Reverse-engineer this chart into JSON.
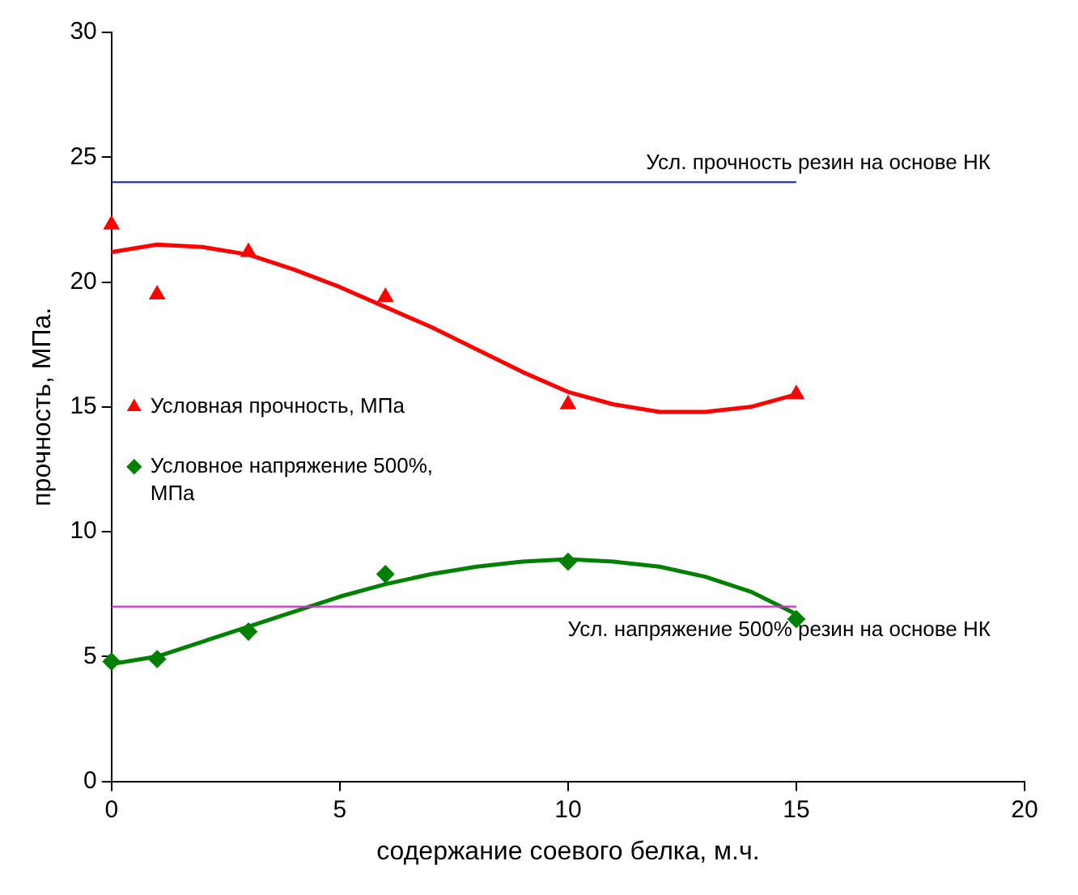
{
  "chart_data": {
    "type": "scatter",
    "xlabel": "содержание соевого белка, м.ч.",
    "ylabel": "прочность, МПа.",
    "xlim": [
      0,
      20
    ],
    "xticks": [
      0,
      5,
      10,
      15,
      20
    ],
    "ylim": [
      0,
      30
    ],
    "yticks": [
      0,
      5,
      10,
      15,
      20,
      25,
      30
    ],
    "grid": false,
    "legend": "left",
    "series": [
      {
        "name": "Условная прочность, МПа",
        "color": "#ff0000",
        "marker": "triangle",
        "x": [
          0,
          1,
          3,
          6,
          10,
          15
        ],
        "values": [
          22.3,
          19.5,
          21.2,
          19.4,
          15.1,
          15.5
        ]
      },
      {
        "name": "Условное напряжение 500%, МПа",
        "color": "#008000",
        "marker": "diamond",
        "x": [
          0,
          1,
          3,
          6,
          10,
          15
        ],
        "values": [
          4.8,
          4.9,
          6.0,
          8.3,
          8.8,
          6.5
        ]
      },
      {
        "type": "line",
        "color": "#ff0000",
        "marker": "none",
        "x": [
          0,
          1,
          2,
          3,
          4,
          5,
          6,
          7,
          8,
          9,
          10,
          11,
          12,
          13,
          14,
          15
        ],
        "values": [
          21.2,
          21.5,
          21.4,
          21.1,
          20.5,
          19.8,
          19.0,
          18.2,
          17.3,
          16.4,
          15.6,
          15.1,
          14.8,
          14.8,
          15.0,
          15.5
        ]
      },
      {
        "type": "line",
        "color": "#008000",
        "marker": "none",
        "x": [
          0,
          1,
          2,
          3,
          4,
          5,
          6,
          7,
          8,
          9,
          10,
          11,
          12,
          13,
          14,
          15
        ],
        "values": [
          4.7,
          5.0,
          5.6,
          6.2,
          6.8,
          7.4,
          7.9,
          8.3,
          8.6,
          8.8,
          8.9,
          8.8,
          8.6,
          8.2,
          7.6,
          6.7
        ]
      }
    ],
    "ref_lines": [
      {
        "axis": "y",
        "value": 24,
        "label": "Усл. прочность резин на основе НК",
        "color": "#3333aa"
      },
      {
        "axis": "y",
        "value": 7,
        "label": "Усл. напряжение 500% резин на основе НК",
        "color": "#cc33cc"
      }
    ]
  }
}
